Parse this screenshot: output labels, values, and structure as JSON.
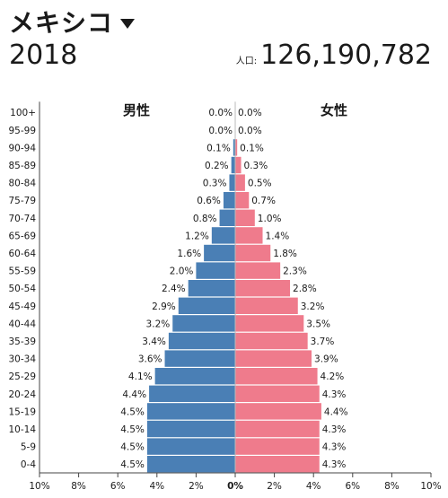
{
  "header": {
    "country": "メキシコ",
    "year": "2018",
    "population_label": "人口:",
    "population_value": "126,190,782"
  },
  "colors": {
    "male": "#4a7fb5",
    "female": "#ef7b8c"
  },
  "chart_data": {
    "type": "bar",
    "orientation": "horizontal",
    "categories": [
      "0-4",
      "5-9",
      "10-14",
      "15-19",
      "20-24",
      "25-29",
      "30-34",
      "35-39",
      "40-44",
      "45-49",
      "50-54",
      "55-59",
      "60-64",
      "65-69",
      "70-74",
      "75-79",
      "80-84",
      "85-89",
      "90-94",
      "95-99",
      "100+"
    ],
    "series": [
      {
        "name": "男性",
        "side": "left",
        "values": [
          4.5,
          4.5,
          4.5,
          4.5,
          4.4,
          4.1,
          3.6,
          3.4,
          3.2,
          2.9,
          2.4,
          2.0,
          1.6,
          1.2,
          0.8,
          0.6,
          0.3,
          0.2,
          0.1,
          0.0,
          0.0
        ]
      },
      {
        "name": "女性",
        "side": "right",
        "values": [
          4.3,
          4.3,
          4.3,
          4.4,
          4.3,
          4.2,
          3.9,
          3.7,
          3.5,
          3.2,
          2.8,
          2.3,
          1.8,
          1.4,
          1.0,
          0.7,
          0.5,
          0.3,
          0.1,
          0.0,
          0.0
        ]
      }
    ],
    "xticks": [
      "10%",
      "8%",
      "6%",
      "4%",
      "2%",
      "0%",
      "2%",
      "4%",
      "6%",
      "8%",
      "10%"
    ],
    "xlim": [
      0,
      10
    ],
    "unit": "%"
  }
}
